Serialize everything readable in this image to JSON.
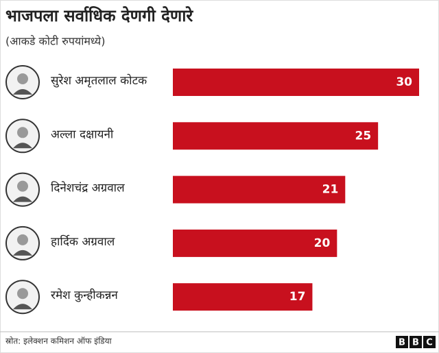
{
  "chart_data": {
    "type": "bar",
    "orientation": "horizontal",
    "title": "भाजपला सर्वाधिक देणगी देणारे",
    "subtitle": "(आकडे कोटी रुपयांमध्ये)",
    "categories": [
      "सुरेश अमृतलाल कोटक",
      "अल्ला दक्षायनी",
      "दिनेशचंद्र अग्रवाल",
      "हार्दिक अग्रवाल",
      "रमेश कुन्हीकन्नन"
    ],
    "values": [
      30,
      25,
      21,
      20,
      17
    ],
    "color": "#c8101e",
    "source": "स्रोत: इलेक्शन कमिशन ऑफ इंडिया",
    "brand": [
      "B",
      "B",
      "C"
    ]
  }
}
